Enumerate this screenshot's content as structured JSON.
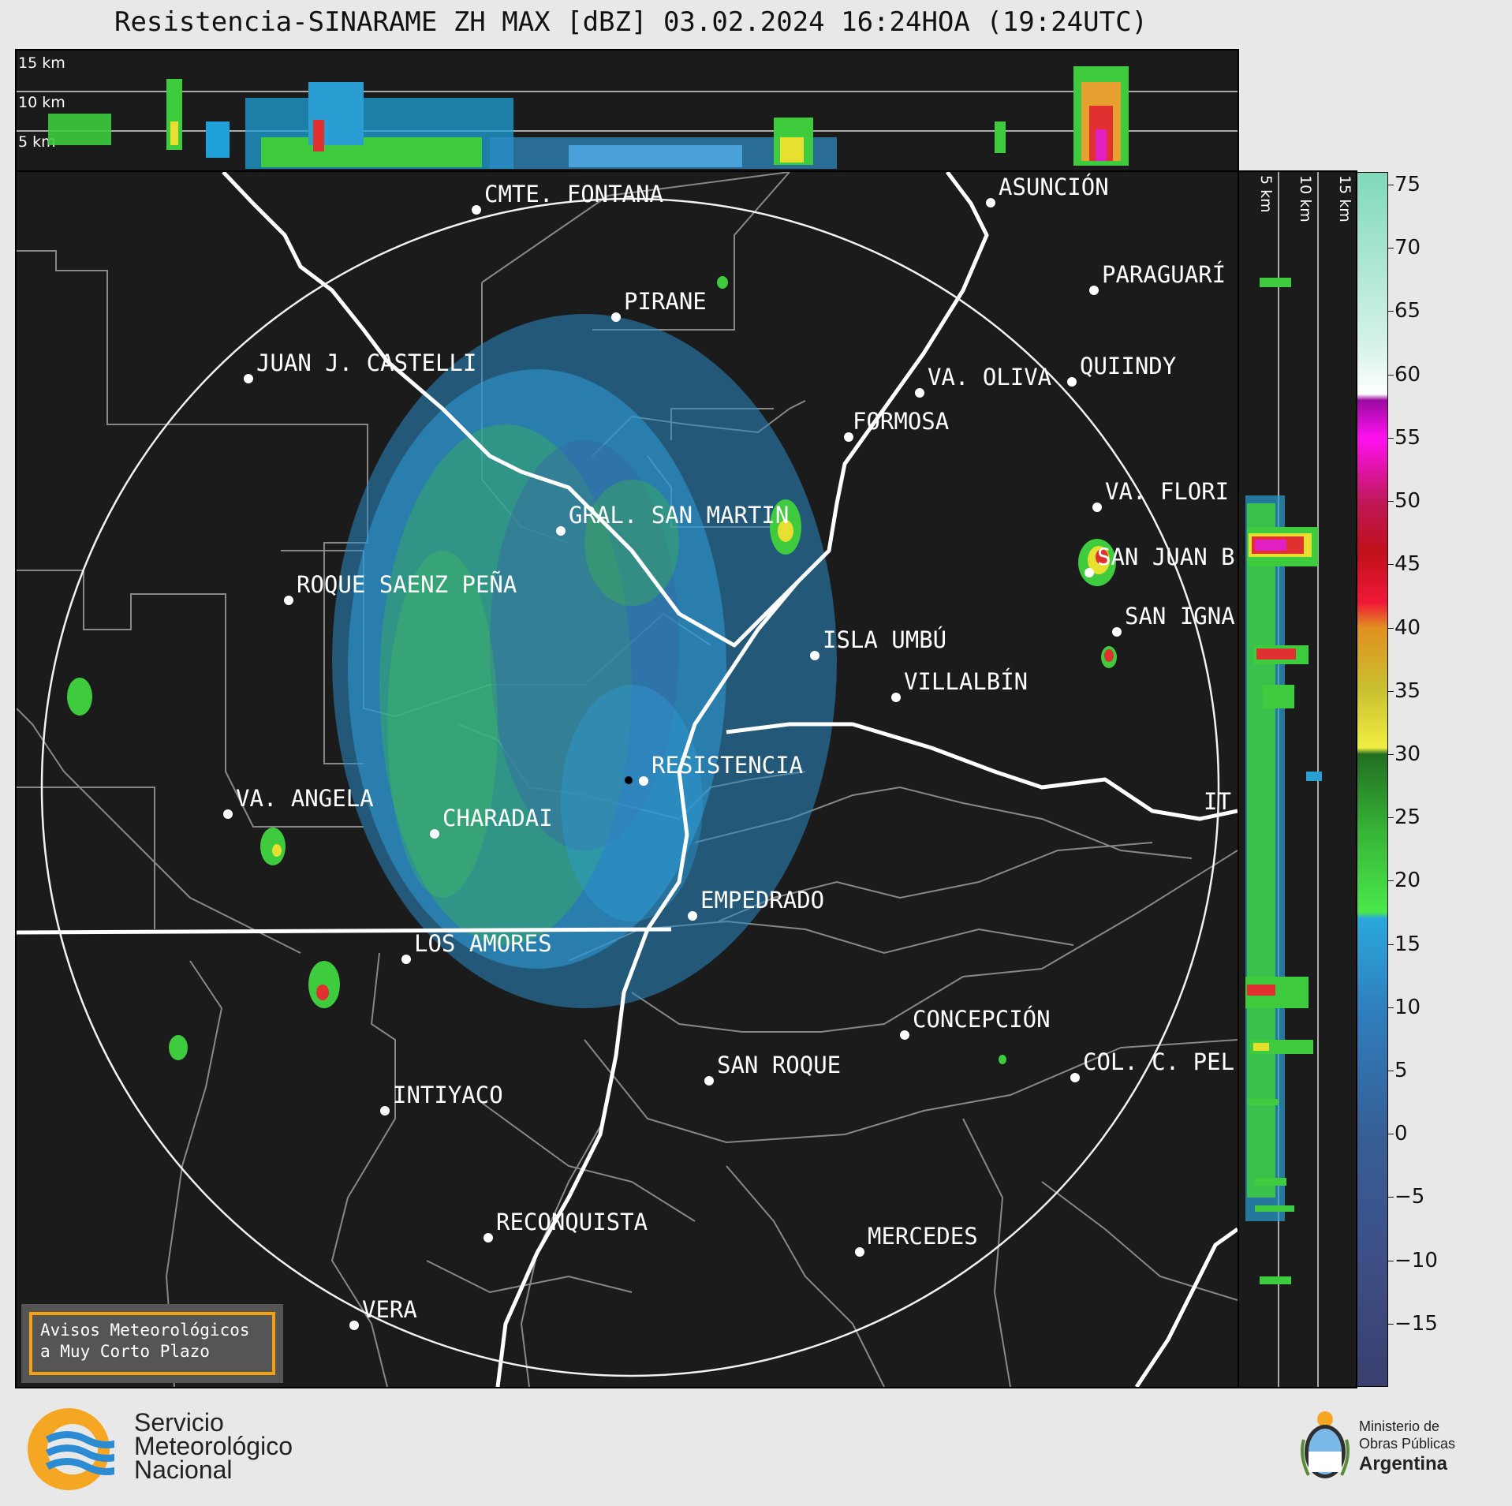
{
  "title": "Resistencia-SINARAME ZH MAX [dBZ] 03.02.2024 16:24HOA (19:24UTC)",
  "top_profile": {
    "altitude_labels": [
      "15 km",
      "10 km",
      "5 km"
    ]
  },
  "side_profile": {
    "altitude_labels": [
      "5 km",
      "10 km",
      "15 km"
    ]
  },
  "cities": [
    {
      "id": "cmte-fontana",
      "name": "CMTE. FONTANA"
    },
    {
      "id": "asuncion",
      "name": "ASUNCIÓN"
    },
    {
      "id": "paraguari",
      "name": "PARAGUARÍ"
    },
    {
      "id": "pirane",
      "name": "PIRANE"
    },
    {
      "id": "juan-castelli",
      "name": "JUAN J. CASTELLI"
    },
    {
      "id": "va-oliva",
      "name": "VA. OLIVA"
    },
    {
      "id": "quiindy",
      "name": "QUIINDY"
    },
    {
      "id": "formosa",
      "name": "FORMOSA"
    },
    {
      "id": "va-florida",
      "name": "VA. FLORI"
    },
    {
      "id": "gral-san-martin",
      "name": "GRAL. SAN MARTIN"
    },
    {
      "id": "san-juan-b",
      "name": "SAN JUAN B"
    },
    {
      "id": "roque-saenz-pena",
      "name": "ROQUE SAENZ PEÑA"
    },
    {
      "id": "san-ignacio",
      "name": "SAN IGNA"
    },
    {
      "id": "isla-umbu",
      "name": "ISLA UMBÚ"
    },
    {
      "id": "villalbin",
      "name": "VILLALBÍN"
    },
    {
      "id": "resistencia",
      "name": "RESISTENCIA"
    },
    {
      "id": "va-angela",
      "name": "VA. ANGELA"
    },
    {
      "id": "charadai",
      "name": "CHARADAI"
    },
    {
      "id": "ita",
      "name": "IT"
    },
    {
      "id": "empedrado",
      "name": "EMPEDRADO"
    },
    {
      "id": "los-amores",
      "name": "LOS AMORES"
    },
    {
      "id": "concepcion",
      "name": "CONCEPCIÓN"
    },
    {
      "id": "col-c-pel",
      "name": "COL. C. PEL"
    },
    {
      "id": "san-roque",
      "name": "SAN ROQUE"
    },
    {
      "id": "intiyaco",
      "name": "INTIYACO"
    },
    {
      "id": "reconquista",
      "name": "RECONQUISTA"
    },
    {
      "id": "mercedes",
      "name": "MERCEDES"
    },
    {
      "id": "vera",
      "name": "VERA"
    }
  ],
  "colorbar": {
    "ticks": [
      "75",
      "70",
      "65",
      "60",
      "55",
      "50",
      "45",
      "40",
      "35",
      "30",
      "25",
      "20",
      "15",
      "10",
      "5",
      "0",
      "−5",
      "−10",
      "−15"
    ],
    "min": -20,
    "max": 76
  },
  "warning_box": {
    "line1": "Avisos Meteorológicos",
    "line2": "a Muy Corto Plazo"
  },
  "smn": {
    "line1": "Servicio",
    "line2": "Meteorológico",
    "line3": "Nacional"
  },
  "ministry": {
    "line1": "Ministerio de",
    "line2": "Obras Públicas",
    "line3": "Argentina"
  }
}
